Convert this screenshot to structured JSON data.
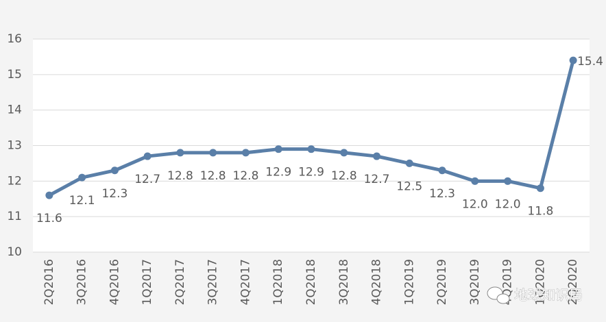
{
  "chart_data": {
    "type": "line",
    "categories": [
      "2Q2016",
      "3Q2016",
      "4Q2016",
      "1Q2017",
      "2Q2017",
      "3Q2017",
      "4Q2017",
      "1Q2018",
      "2Q2018",
      "3Q2018",
      "4Q2018",
      "1Q2019",
      "2Q2019",
      "3Q2019",
      "4Q2019",
      "1Q2020",
      "2Q2020"
    ],
    "values": [
      11.6,
      12.1,
      12.3,
      12.7,
      12.8,
      12.8,
      12.8,
      12.9,
      12.9,
      12.8,
      12.7,
      12.5,
      12.3,
      12.0,
      12.0,
      11.8,
      15.4
    ],
    "value_labels": [
      "11.6",
      "12.1",
      "12.3",
      "12.7",
      "12.8",
      "12.8",
      "12.8",
      "12.9",
      "12.9",
      "12.8",
      "12.7",
      "12.5",
      "12.3",
      "12.0",
      "12.0",
      "11.8",
      "15.4"
    ],
    "color": "#5a7fa8",
    "ylim": [
      10,
      16
    ],
    "yticks": [
      10,
      11,
      12,
      13,
      14,
      15,
      16
    ],
    "grid": true,
    "watermark": "地球知识局"
  }
}
